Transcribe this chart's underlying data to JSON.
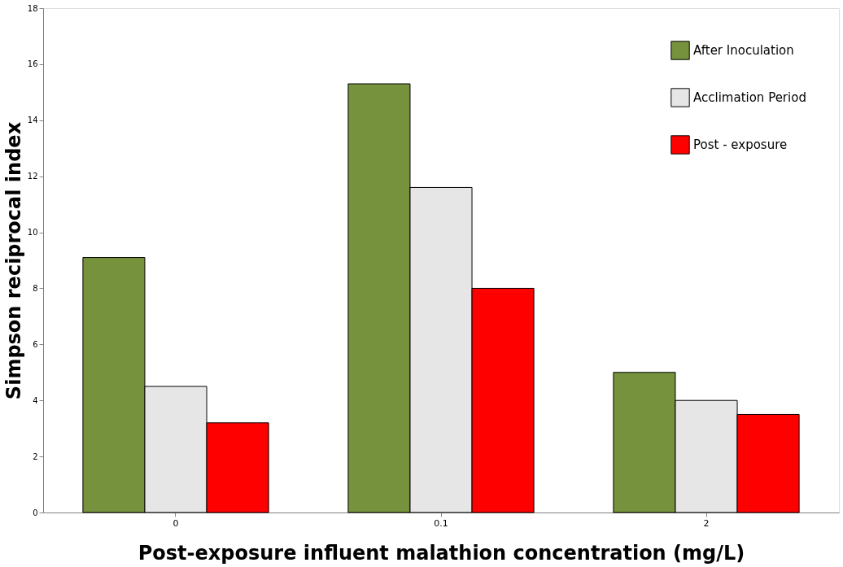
{
  "chart_data": {
    "type": "bar",
    "xlabel": "Post-exposure influent malathion concentration (mg/L)",
    "ylabel": "Simpson reciprocal index",
    "categories": [
      "0",
      "0.1",
      "2"
    ],
    "series": [
      {
        "name": "After Inoculation",
        "color": "#76923c",
        "values": [
          9.1,
          15.3,
          5.0
        ]
      },
      {
        "name": "Acclimation Period",
        "color": "#e6e6e6",
        "values": [
          4.5,
          11.6,
          4.0
        ]
      },
      {
        "name": "Post - exposure",
        "color": "#ff0000",
        "values": [
          3.2,
          8.0,
          3.5
        ]
      }
    ],
    "ylim": [
      0,
      18
    ],
    "yticks": [
      0,
      2,
      4,
      6,
      8,
      10,
      12,
      14,
      16,
      18
    ],
    "grid": false,
    "legend": "top right"
  }
}
